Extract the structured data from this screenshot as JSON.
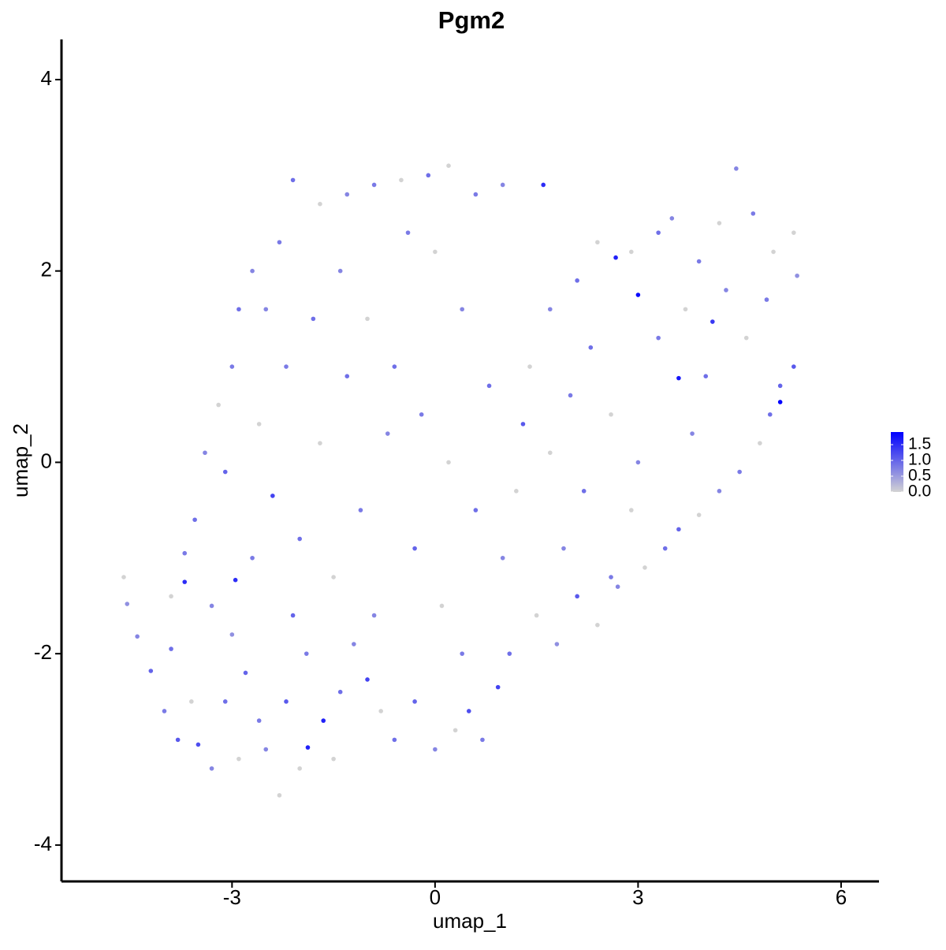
{
  "chart_data": {
    "type": "scatter",
    "title": "Pgm2",
    "x_label": "umap_1",
    "y_label": "umap_2",
    "x": [
      1.6,
      2.67,
      3.0,
      3.6,
      4.1,
      5.1,
      -3.7,
      -2.95,
      -1.65,
      -1.88,
      0.93,
      -1.0,
      -4.6,
      -4.55,
      -4.4,
      -4.2,
      -4.0,
      -3.9,
      -3.8,
      -3.6,
      -3.5,
      -3.3,
      -3.1,
      -3.0,
      -2.9,
      -2.8,
      -2.6,
      -2.5,
      -2.3,
      -2.2,
      -2.0,
      -1.9,
      -1.5,
      -1.4,
      -1.2,
      -0.8,
      -0.6,
      -0.3,
      0.0,
      0.3,
      0.5,
      0.7,
      1.1,
      1.5,
      1.8,
      2.1,
      2.4,
      2.6,
      2.7,
      3.1,
      3.4,
      3.6,
      3.9,
      4.2,
      4.5,
      4.8,
      4.95,
      5.1,
      5.3,
      5.35,
      5.3,
      5.0,
      4.7,
      4.45,
      4.2,
      3.9,
      3.5,
      3.3,
      2.9,
      2.4,
      2.1,
      1.7,
      1.4,
      1.0,
      0.6,
      0.2,
      -0.1,
      -0.5,
      -0.9,
      -1.3,
      -1.7,
      -2.1,
      -2.3,
      -2.7,
      -2.9,
      -3.0,
      -3.2,
      -3.4,
      -3.55,
      -3.7,
      -3.1,
      -2.6,
      -2.2,
      -1.8,
      -1.4,
      -1.0,
      -0.6,
      -0.2,
      0.2,
      0.6,
      1.0,
      -2.4,
      -2.0,
      -1.5,
      -1.1,
      -0.7,
      -0.3,
      0.1,
      0.4,
      -1.7,
      -1.3,
      -0.9,
      1.3,
      1.7,
      2.0,
      2.3,
      2.6,
      3.0,
      3.3,
      3.7,
      4.0,
      4.3,
      4.6,
      4.9,
      3.8,
      2.9,
      2.2,
      1.9,
      1.2,
      0.8,
      0.4,
      0.0,
      -0.4,
      -2.5,
      -2.1,
      -2.7,
      -3.3,
      -3.9
    ],
    "y": [
      2.9,
      2.14,
      1.75,
      0.88,
      1.47,
      0.63,
      -1.25,
      -1.23,
      -2.7,
      -2.98,
      -2.35,
      -2.27,
      -1.2,
      -1.48,
      -1.82,
      -2.18,
      -2.6,
      -1.95,
      -2.9,
      -2.5,
      -2.95,
      -3.2,
      -2.5,
      -1.8,
      -3.1,
      -2.2,
      -2.7,
      -3.0,
      -3.48,
      -2.5,
      -3.2,
      -2.0,
      -3.1,
      -2.4,
      -1.9,
      -2.6,
      -2.9,
      -2.5,
      -3.0,
      -2.8,
      -2.6,
      -2.9,
      -2.0,
      -1.6,
      -1.9,
      -1.4,
      -1.7,
      -1.2,
      -1.3,
      -1.1,
      -0.9,
      -0.7,
      -0.55,
      -0.3,
      -0.1,
      0.2,
      0.5,
      0.8,
      1.0,
      1.95,
      2.4,
      2.2,
      2.6,
      3.07,
      2.5,
      2.1,
      2.55,
      2.4,
      2.2,
      2.3,
      1.9,
      1.6,
      1.0,
      2.9,
      2.8,
      3.1,
      3.0,
      2.95,
      2.9,
      2.8,
      2.7,
      2.95,
      2.3,
      2.0,
      1.6,
      1.0,
      0.6,
      0.1,
      -0.6,
      -0.95,
      -0.1,
      0.4,
      1.0,
      1.5,
      2.0,
      1.5,
      1.0,
      0.5,
      0.0,
      -0.5,
      -1.0,
      -0.35,
      -0.8,
      -1.2,
      -0.5,
      0.3,
      -0.9,
      -1.5,
      -2.0,
      0.2,
      0.9,
      -1.6,
      0.4,
      0.1,
      0.7,
      1.2,
      0.5,
      0.0,
      1.3,
      1.6,
      0.9,
      1.8,
      1.3,
      1.7,
      0.3,
      -0.5,
      -0.3,
      -0.9,
      -0.3,
      0.8,
      1.6,
      2.2,
      2.4,
      1.6,
      -1.6,
      -1.0,
      -1.5,
      -1.4
    ],
    "values": [
      1.5,
      1.6,
      1.8,
      1.7,
      1.4,
      1.9,
      1.5,
      1.5,
      1.6,
      1.6,
      1.3,
      1.3,
      0,
      0.6,
      0.7,
      1.0,
      0.8,
      0.9,
      1.1,
      0,
      1.2,
      0.7,
      0.9,
      0.6,
      0,
      1.0,
      0.8,
      0.7,
      0,
      1.1,
      0,
      0.8,
      0,
      0.9,
      0.7,
      0,
      0.9,
      1.0,
      0.7,
      0,
      1.2,
      0.8,
      0.9,
      0,
      0.6,
      1.1,
      0,
      0.8,
      0.7,
      0,
      0.9,
      1.0,
      0,
      0.7,
      0.8,
      0,
      0.9,
      1.0,
      1.1,
      0.6,
      0,
      0,
      0.8,
      0.7,
      0,
      0.8,
      0.7,
      0.9,
      0,
      0,
      0.9,
      0.7,
      0,
      0.7,
      0.8,
      0,
      0.9,
      0,
      0.8,
      0.7,
      0,
      0.9,
      0.8,
      0.7,
      0.9,
      0.8,
      0,
      0.7,
      0.9,
      0.8,
      1.0,
      0,
      0.8,
      0.9,
      0.7,
      0,
      0.9,
      0.8,
      0,
      0.9,
      0.7,
      1.3,
      0.9,
      0,
      0.8,
      0.7,
      1.0,
      0,
      0.8,
      0,
      0.9,
      0.7,
      1.1,
      0,
      0.8,
      0.9,
      0,
      0.7,
      0.8,
      0,
      0.9,
      0.7,
      0,
      0.8,
      0.7,
      0,
      0.9,
      0.7,
      0,
      0.9,
      0.7,
      0,
      0.8,
      0.7,
      1.0,
      0.8,
      0.7,
      0
    ],
    "low_color": "#d3d3d3",
    "high_color": "#0000ff",
    "clim": [
      0,
      1.9
    ],
    "cticks": [
      {
        "value": 0,
        "label": "0.0"
      },
      0.5,
      {
        "value": 1,
        "label": "1.0"
      },
      1.5
    ],
    "xlim": [
      -5.52,
      6.56
    ],
    "ylim": [
      -4.38,
      4.42
    ],
    "xticks": [
      -3,
      0,
      3,
      6
    ],
    "yticks": [
      -4,
      -2,
      0,
      2,
      4
    ],
    "grid": false
  }
}
